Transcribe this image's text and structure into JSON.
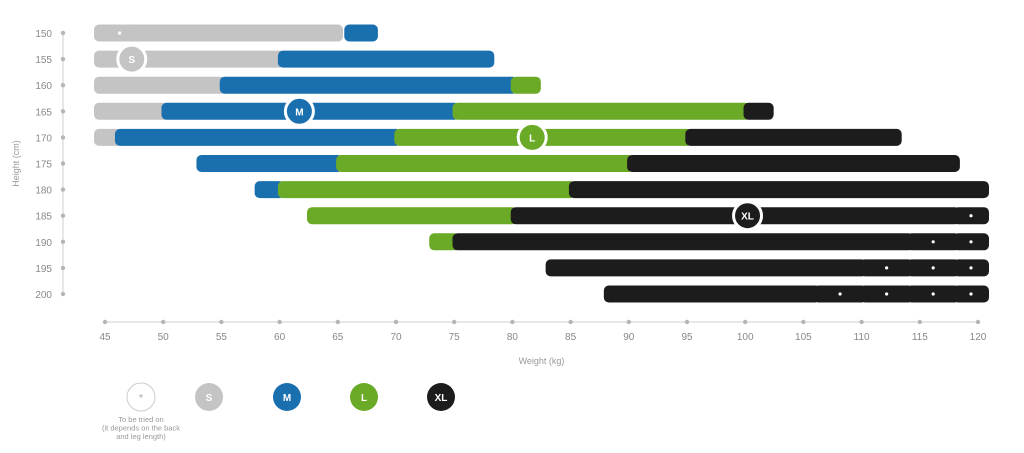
{
  "chart_data": {
    "type": "range_bar",
    "title": "",
    "xlabel": "Weight (kg)",
    "ylabel": "Height (cm)",
    "x_ticks": [
      45,
      50,
      55,
      60,
      65,
      70,
      75,
      80,
      85,
      90,
      95,
      100,
      105,
      110,
      115,
      120
    ],
    "y_ticks": [
      150,
      155,
      160,
      165,
      170,
      175,
      180,
      185,
      190,
      195,
      200
    ],
    "xlim": [
      45,
      120
    ],
    "ylim": [
      150,
      200
    ],
    "grid": false,
    "legend_position": "bottom-left",
    "sizes": [
      {
        "key": "star",
        "label": "*",
        "color": "#ffffff",
        "border": "#cccccc",
        "text_color": "#bbbbbb"
      },
      {
        "key": "S",
        "label": "S",
        "color": "#c4c4c4",
        "text_color": "#ffffff"
      },
      {
        "key": "M",
        "label": "M",
        "color": "#1a6faf",
        "text_color": "#ffffff"
      },
      {
        "key": "L",
        "label": "L",
        "color": "#6aaa26",
        "text_color": "#ffffff"
      },
      {
        "key": "XL",
        "label": "XL",
        "color": "#1c1c1c",
        "text_color": "#ffffff"
      }
    ],
    "legend_note": "To be tried on (it depends on the back and leg length)",
    "ranges": [
      {
        "size": "S",
        "height": 150,
        "from": 45,
        "to": 47.5,
        "star": true
      },
      {
        "size": "S",
        "height": 150,
        "from": 48.2,
        "to": 64.5
      },
      {
        "size": "M",
        "height": 150,
        "from": 66.5,
        "to": 67.5
      },
      {
        "size": "S",
        "height": 155,
        "from": 45,
        "to": 59.5,
        "label": "S",
        "label_at": 47.3
      },
      {
        "size": "M",
        "height": 155,
        "from": 60.8,
        "to": 77.5
      },
      {
        "size": "S",
        "height": 160,
        "from": 45,
        "to": 54.5
      },
      {
        "size": "M",
        "height": 160,
        "from": 55.8,
        "to": 79.5
      },
      {
        "size": "L",
        "height": 160,
        "from": 80.8,
        "to": 81.5
      },
      {
        "size": "S",
        "height": 165,
        "from": 45,
        "to": 49.5
      },
      {
        "size": "M",
        "height": 165,
        "from": 50.8,
        "to": 74.5,
        "label": "M",
        "label_at": 61.7
      },
      {
        "size": "L",
        "height": 165,
        "from": 75.8,
        "to": 99.5
      },
      {
        "size": "XL",
        "height": 165,
        "from": 100.8,
        "to": 101.5
      },
      {
        "size": "S",
        "height": 170,
        "from": 45,
        "to": 45.5
      },
      {
        "size": "M",
        "height": 170,
        "from": 46.8,
        "to": 69.5
      },
      {
        "size": "L",
        "height": 170,
        "from": 70.8,
        "to": 94.5,
        "label": "L",
        "label_at": 81.7
      },
      {
        "size": "XL",
        "height": 170,
        "from": 95.8,
        "to": 112.5
      },
      {
        "size": "M",
        "height": 175,
        "from": 53.8,
        "to": 64.5
      },
      {
        "size": "L",
        "height": 175,
        "from": 65.8,
        "to": 89.5
      },
      {
        "size": "XL",
        "height": 175,
        "from": 90.8,
        "to": 117.5
      },
      {
        "size": "M",
        "height": 180,
        "from": 58.8,
        "to": 59.5
      },
      {
        "size": "L",
        "height": 180,
        "from": 60.8,
        "to": 84.5
      },
      {
        "size": "XL",
        "height": 180,
        "from": 85.8,
        "to": 120
      },
      {
        "size": "L",
        "height": 185,
        "from": 63.3,
        "to": 79.5
      },
      {
        "size": "XL",
        "height": 185,
        "from": 80.8,
        "to": 117.5,
        "label": "XL",
        "label_at": 100.2
      },
      {
        "size": "XL",
        "height": 185,
        "from": 118.8,
        "to": 120,
        "star": true
      },
      {
        "size": "L",
        "height": 190,
        "from": 73.8,
        "to": 74.5
      },
      {
        "size": "XL",
        "height": 190,
        "from": 75.8,
        "to": 113.5
      },
      {
        "size": "XL",
        "height": 190,
        "from": 114.8,
        "to": 117.5,
        "star": true
      },
      {
        "size": "XL",
        "height": 190,
        "from": 118.8,
        "to": 120,
        "star": true
      },
      {
        "size": "XL",
        "height": 195,
        "from": 83.8,
        "to": 109.5
      },
      {
        "size": "XL",
        "height": 195,
        "from": 110.8,
        "to": 113.5,
        "star": true
      },
      {
        "size": "XL",
        "height": 195,
        "from": 114.8,
        "to": 117.5,
        "star": true
      },
      {
        "size": "XL",
        "height": 195,
        "from": 118.8,
        "to": 120,
        "star": true
      },
      {
        "size": "XL",
        "height": 200,
        "from": 88.8,
        "to": 105.5
      },
      {
        "size": "XL",
        "height": 200,
        "from": 106.8,
        "to": 109.5,
        "star": true
      },
      {
        "size": "XL",
        "height": 200,
        "from": 110.8,
        "to": 113.5,
        "star": true
      },
      {
        "size": "XL",
        "height": 200,
        "from": 114.8,
        "to": 117.5,
        "star": true
      },
      {
        "size": "XL",
        "height": 200,
        "from": 118.8,
        "to": 120,
        "star": true
      }
    ]
  }
}
